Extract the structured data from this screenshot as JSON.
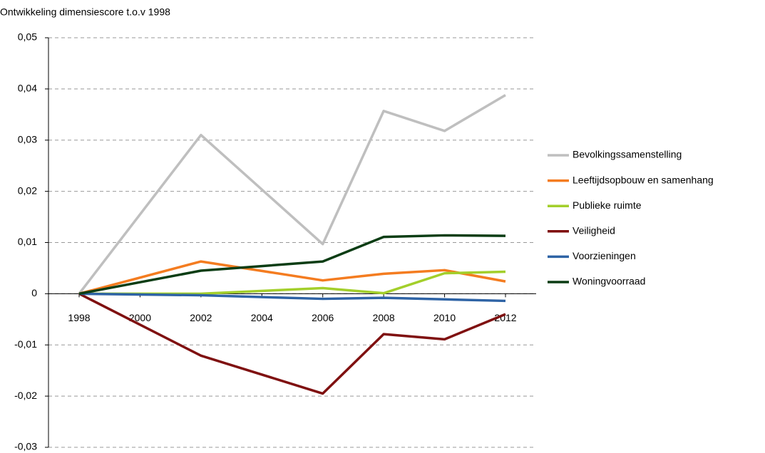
{
  "chart_data": {
    "type": "line",
    "title": "Ontwikkeling dimensiescore t.o.v 1998",
    "x": [
      1998,
      2002,
      2006,
      2008,
      2010,
      2012
    ],
    "xlim": [
      1998,
      2012
    ],
    "xticks": [
      1998,
      2000,
      2002,
      2004,
      2006,
      2008,
      2010,
      2012
    ],
    "ylim": [
      -0.03,
      0.05
    ],
    "yticks": [
      {
        "value": -0.03,
        "label": "-0,03"
      },
      {
        "value": -0.02,
        "label": "-0,02"
      },
      {
        "value": -0.01,
        "label": "-0,01"
      },
      0,
      {
        "value": 0.01,
        "label": "0,01"
      },
      {
        "value": 0.02,
        "label": "0,02"
      },
      {
        "value": 0.03,
        "label": "0,03"
      },
      {
        "value": 0.04,
        "label": "0,04"
      },
      {
        "value": 0.05,
        "label": "0,05"
      }
    ],
    "grid": true,
    "legend": "right",
    "series": [
      {
        "name": "Bevolkingssamenstelling",
        "color": "#bfbfbf",
        "values": [
          0,
          0.031,
          0.0097,
          0.0357,
          0.0318,
          0.0388
        ]
      },
      {
        "name": "Leeftijdsopbouw en samenhang",
        "color": "#f47c20",
        "values": [
          0,
          0.0063,
          0.0026,
          0.0039,
          0.0046,
          0.0024
        ]
      },
      {
        "name": "Publieke ruimte",
        "color": "#a3cf2b",
        "values": [
          0,
          0,
          0.0011,
          0.0001,
          0.004,
          0.0043
        ]
      },
      {
        "name": "Veiligheid",
        "color": "#7f1010",
        "values": [
          0,
          -0.0121,
          -0.0195,
          -0.0079,
          -0.0089,
          -0.004
        ]
      },
      {
        "name": "Voorzieningen",
        "color": "#2e63a5",
        "values": [
          0,
          -0.0003,
          -0.001,
          -0.0008,
          -0.0011,
          -0.0014
        ]
      },
      {
        "name": "Woningvoorraad",
        "color": "#0b3d14",
        "values": [
          0,
          0.0045,
          0.0063,
          0.0111,
          0.0114,
          0.0113
        ]
      }
    ]
  }
}
